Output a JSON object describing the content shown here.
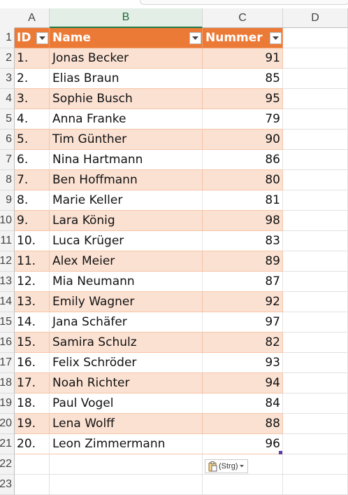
{
  "columns": [
    "A",
    "B",
    "C",
    "D"
  ],
  "row_numbers": [
    "1",
    "2",
    "3",
    "4",
    "5",
    "6",
    "7",
    "8",
    "9",
    "10",
    "11",
    "12",
    "13",
    "14",
    "15",
    "16",
    "17",
    "18",
    "19",
    "20",
    "21",
    "22",
    "23"
  ],
  "table": {
    "headers": {
      "id": "ID",
      "name": "Name",
      "number": "Nummer"
    },
    "rows": [
      {
        "id": "1.",
        "name": "Jonas Becker",
        "number": "91"
      },
      {
        "id": "2.",
        "name": "Elias Braun",
        "number": "85"
      },
      {
        "id": "3.",
        "name": "Sophie Busch",
        "number": "95"
      },
      {
        "id": "4.",
        "name": "Anna Franke",
        "number": "79"
      },
      {
        "id": "5.",
        "name": "Tim Günther",
        "number": "90"
      },
      {
        "id": "6.",
        "name": "Nina Hartmann",
        "number": "86"
      },
      {
        "id": "7.",
        "name": "Ben Hoffmann",
        "number": "80"
      },
      {
        "id": "8.",
        "name": "Marie Keller",
        "number": "81"
      },
      {
        "id": "9.",
        "name": "Lara König",
        "number": "98"
      },
      {
        "id": "10.",
        "name": "Luca Krüger",
        "number": "83"
      },
      {
        "id": "11.",
        "name": "Alex Meier",
        "number": "89"
      },
      {
        "id": "12.",
        "name": "Mia Neumann",
        "number": "87"
      },
      {
        "id": "13.",
        "name": "Emily Wagner",
        "number": "92"
      },
      {
        "id": "14.",
        "name": "Jana Schäfer",
        "number": "97"
      },
      {
        "id": "15.",
        "name": "Samira Schulz",
        "number": "82"
      },
      {
        "id": "16.",
        "name": "Felix Schröder",
        "number": "93"
      },
      {
        "id": "17.",
        "name": "Noah Richter",
        "number": "94"
      },
      {
        "id": "18.",
        "name": "Paul Vogel",
        "number": "84"
      },
      {
        "id": "19.",
        "name": "Lena Wolff",
        "number": "88"
      },
      {
        "id": "20.",
        "name": "Leon Zimmermann",
        "number": "96"
      }
    ]
  },
  "paste_options": {
    "label": "(Strg)",
    "icon": "clipboard-icon"
  },
  "colors": {
    "table_header": "#ec7a37",
    "band": "#fbe1d2",
    "selected_column": "#1e7b45"
  },
  "selected_column": "B"
}
